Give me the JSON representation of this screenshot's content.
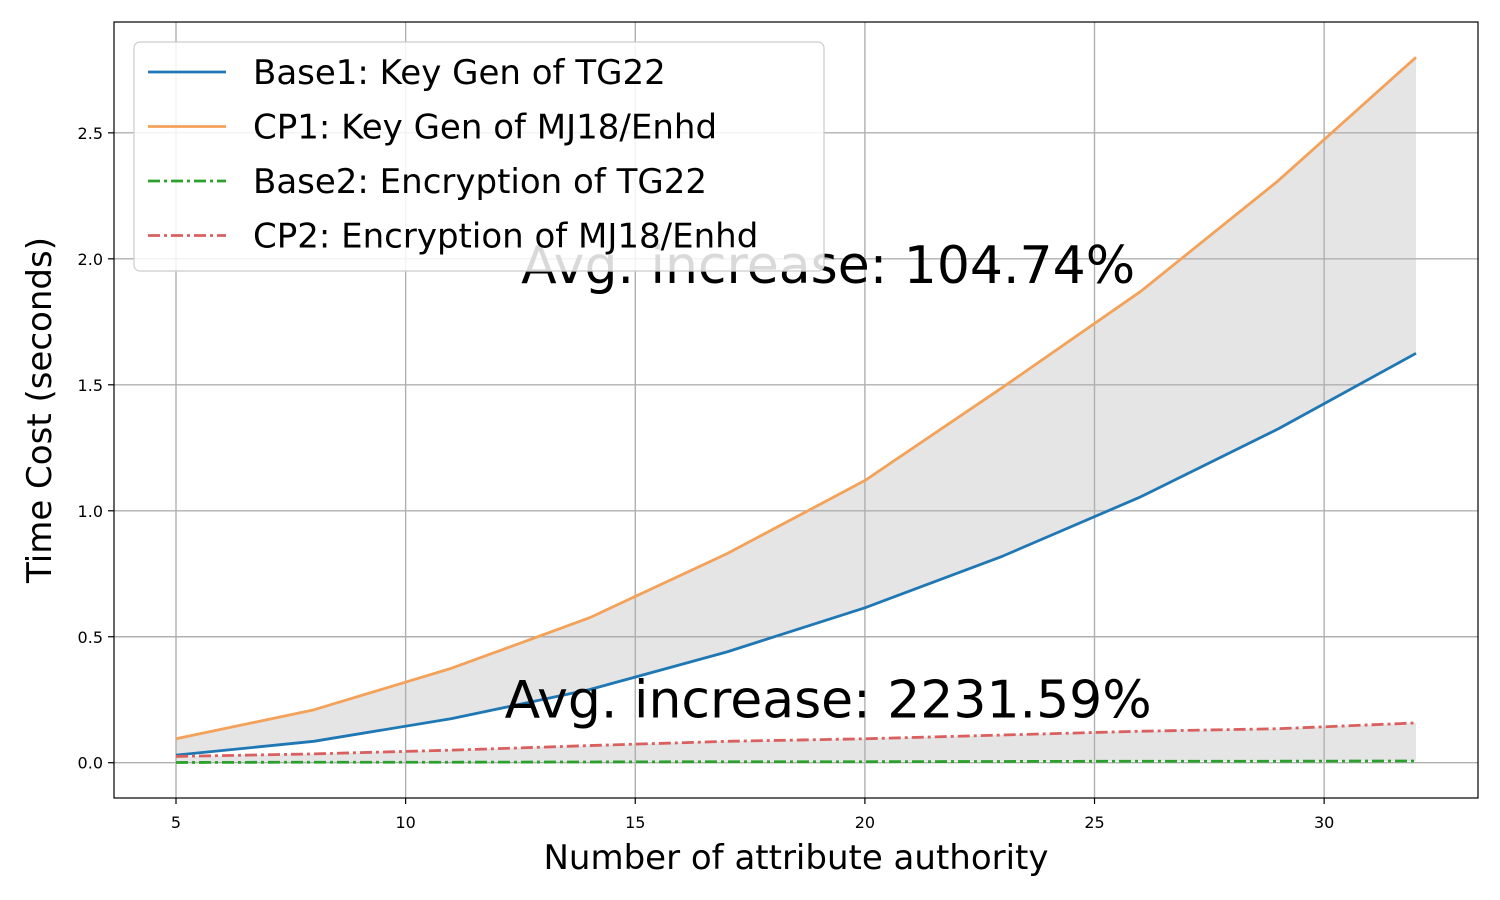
{
  "chart_data": {
    "type": "line",
    "xlabel": "Number of attribute authority",
    "ylabel": "Time Cost (seconds)",
    "xlim": [
      3.65,
      33.35
    ],
    "ylim": [
      -0.14,
      2.94
    ],
    "xticks": [
      5,
      10,
      15,
      20,
      25,
      30
    ],
    "yticks": [
      0.0,
      0.5,
      1.0,
      1.5,
      2.0,
      2.5
    ],
    "grid": true,
    "legend_position": "top-left",
    "x": [
      5,
      8,
      11,
      14,
      17,
      20,
      23,
      26,
      29,
      32
    ],
    "series": [
      {
        "name": "Base1: Key Gen of TG22",
        "color": "#1f77b4",
        "dash": "solid",
        "values": [
          0.03,
          0.085,
          0.175,
          0.29,
          0.44,
          0.615,
          0.82,
          1.055,
          1.325,
          1.625
        ]
      },
      {
        "name": "CP1: Key Gen of MJ18/Enhd",
        "color": "#f4a259",
        "dash": "solid",
        "values": [
          0.095,
          0.21,
          0.375,
          0.575,
          0.83,
          1.12,
          1.49,
          1.87,
          2.31,
          2.8
        ]
      },
      {
        "name": "Base2: Encryption of TG22",
        "color": "#2ca02c",
        "dash": "dashdot",
        "values": [
          0.001,
          0.002,
          0.002,
          0.003,
          0.004,
          0.004,
          0.005,
          0.006,
          0.006,
          0.007
        ]
      },
      {
        "name": "CP2: Encryption of MJ18/Enhd",
        "color": "#d9605e",
        "dash": "dashdot",
        "values": [
          0.025,
          0.035,
          0.05,
          0.068,
          0.085,
          0.095,
          0.11,
          0.125,
          0.135,
          0.158
        ]
      }
    ],
    "fills": [
      {
        "between": [
          0,
          1
        ],
        "color": "#e5e5e5"
      },
      {
        "between": [
          2,
          3
        ],
        "color": "#e5e5e5"
      }
    ],
    "annotations": [
      {
        "text": "Avg. increase: 104.74%",
        "x": 19.2,
        "y": 1.905
      },
      {
        "text": "Avg. increase: 2231.59%",
        "x": 19.2,
        "y": 0.18
      }
    ]
  }
}
